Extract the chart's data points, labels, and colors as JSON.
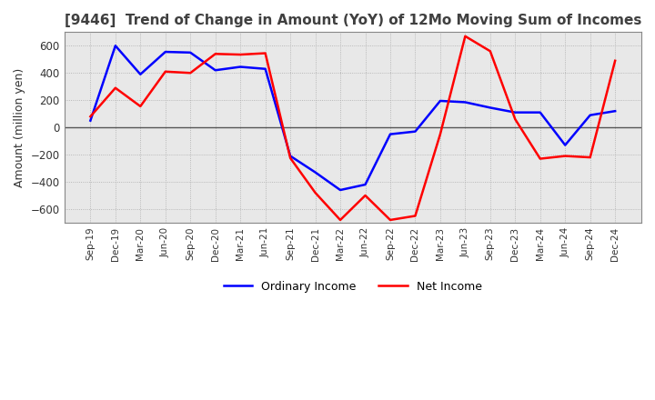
{
  "title": "[9446]  Trend of Change in Amount (YoY) of 12Mo Moving Sum of Incomes",
  "ylabel": "Amount (million yen)",
  "x_labels": [
    "Sep-19",
    "Dec-19",
    "Mar-20",
    "Jun-20",
    "Sep-20",
    "Dec-20",
    "Mar-21",
    "Jun-21",
    "Sep-21",
    "Dec-21",
    "Mar-22",
    "Jun-22",
    "Sep-22",
    "Dec-22",
    "Mar-23",
    "Jun-23",
    "Sep-23",
    "Dec-23",
    "Mar-24",
    "Jun-24",
    "Sep-24",
    "Dec-24"
  ],
  "ordinary_income": [
    50,
    600,
    390,
    555,
    550,
    420,
    445,
    430,
    -210,
    -330,
    -460,
    -420,
    -50,
    -30,
    195,
    185,
    145,
    110,
    110,
    -130,
    90,
    120
  ],
  "net_income": [
    80,
    290,
    155,
    410,
    400,
    540,
    535,
    545,
    -225,
    -480,
    -680,
    -500,
    -680,
    -650,
    -50,
    670,
    560,
    60,
    -230,
    -210,
    -220,
    490
  ],
  "ordinary_color": "#0000ff",
  "net_color": "#ff0000",
  "ylim": [
    -700,
    700
  ],
  "yticks": [
    -600,
    -400,
    -200,
    0,
    200,
    400,
    600
  ],
  "plot_bg_color": "#e8e8e8",
  "fig_bg_color": "#ffffff",
  "grid_color": "#aaaaaa",
  "title_color": "#404040",
  "legend_labels": [
    "Ordinary Income",
    "Net Income"
  ]
}
